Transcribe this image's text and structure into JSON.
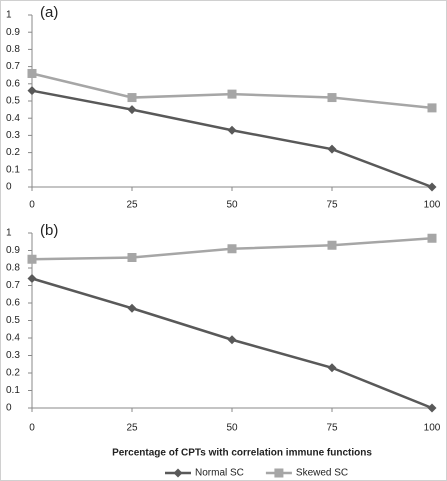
{
  "chart_data": [
    {
      "type": "line",
      "title": "(a)",
      "x": [
        0,
        25,
        50,
        75,
        100
      ],
      "xlim": [
        0,
        100
      ],
      "xticks": [
        0,
        25,
        50,
        75,
        100
      ],
      "ylim": [
        0,
        1
      ],
      "yticks": [
        0,
        0.1,
        0.2,
        0.3,
        0.4,
        0.5,
        0.6,
        0.7,
        0.8,
        0.9,
        1
      ],
      "series": [
        {
          "color": "#595959",
          "marker": "diamond",
          "values": [
            0.56,
            0.45,
            0.33,
            0.22,
            0
          ]
        },
        {
          "color": "#a6a6a6",
          "marker": "square",
          "values": [
            0.66,
            0.52,
            0.54,
            0.52,
            0.46
          ]
        }
      ]
    },
    {
      "type": "line",
      "title": "(b)",
      "x_label": "Percentage of CPTs with correlation immune functions",
      "x": [
        0,
        25,
        50,
        75,
        100
      ],
      "xlim": [
        0,
        100
      ],
      "xticks": [
        0,
        25,
        50,
        75,
        100
      ],
      "ylim": [
        0,
        1
      ],
      "yticks": [
        0,
        0.1,
        0.2,
        0.3,
        0.4,
        0.5,
        0.6,
        0.7,
        0.8,
        0.9,
        1
      ],
      "legend": "bottom",
      "series": [
        {
          "name": "Normal SC",
          "color": "#595959",
          "marker": "diamond",
          "values": [
            0.74,
            0.57,
            0.39,
            0.23,
            0
          ]
        },
        {
          "name": "Skewed SC",
          "color": "#a6a6a6",
          "marker": "square",
          "values": [
            0.85,
            0.86,
            0.91,
            0.93,
            0.97
          ]
        }
      ]
    }
  ]
}
